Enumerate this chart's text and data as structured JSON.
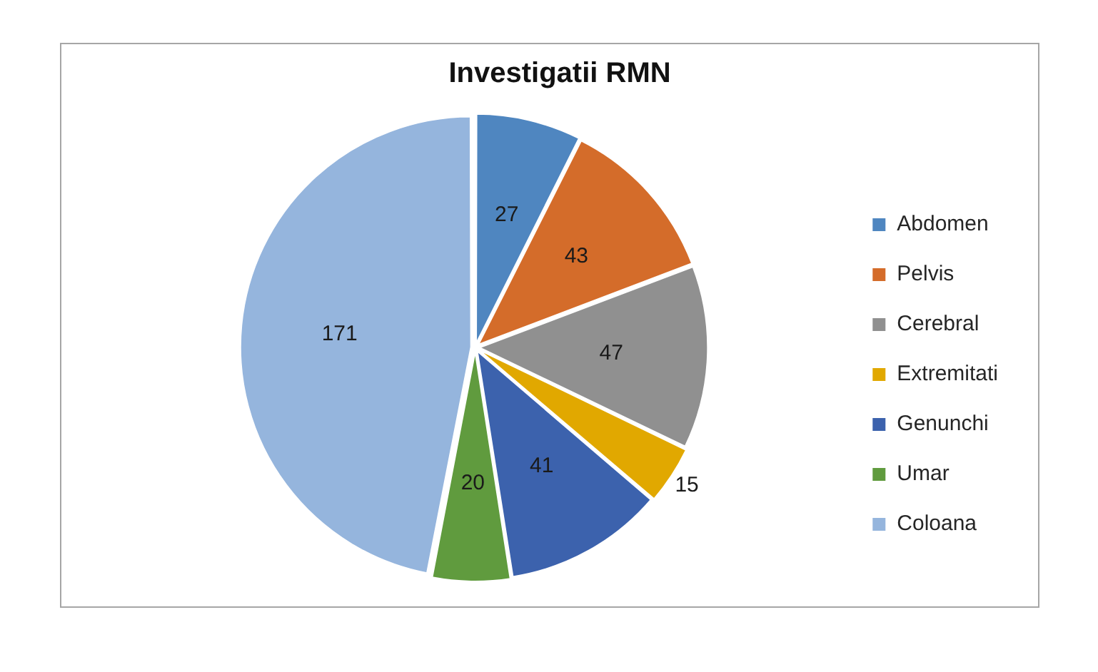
{
  "chart_data": {
    "type": "pie",
    "title": "Investigatii RMN",
    "categories": [
      "Abdomen",
      "Pelvis",
      "Cerebral",
      "Extremitati",
      "Genunchi",
      "Umar",
      "Coloana"
    ],
    "values": [
      27,
      43,
      47,
      15,
      41,
      20,
      171
    ],
    "colors": [
      "#4f86c0",
      "#d46c2a",
      "#909090",
      "#e1a800",
      "#3c62ad",
      "#609b3e",
      "#95b5dd"
    ],
    "data_labels": true,
    "legend": "right"
  }
}
